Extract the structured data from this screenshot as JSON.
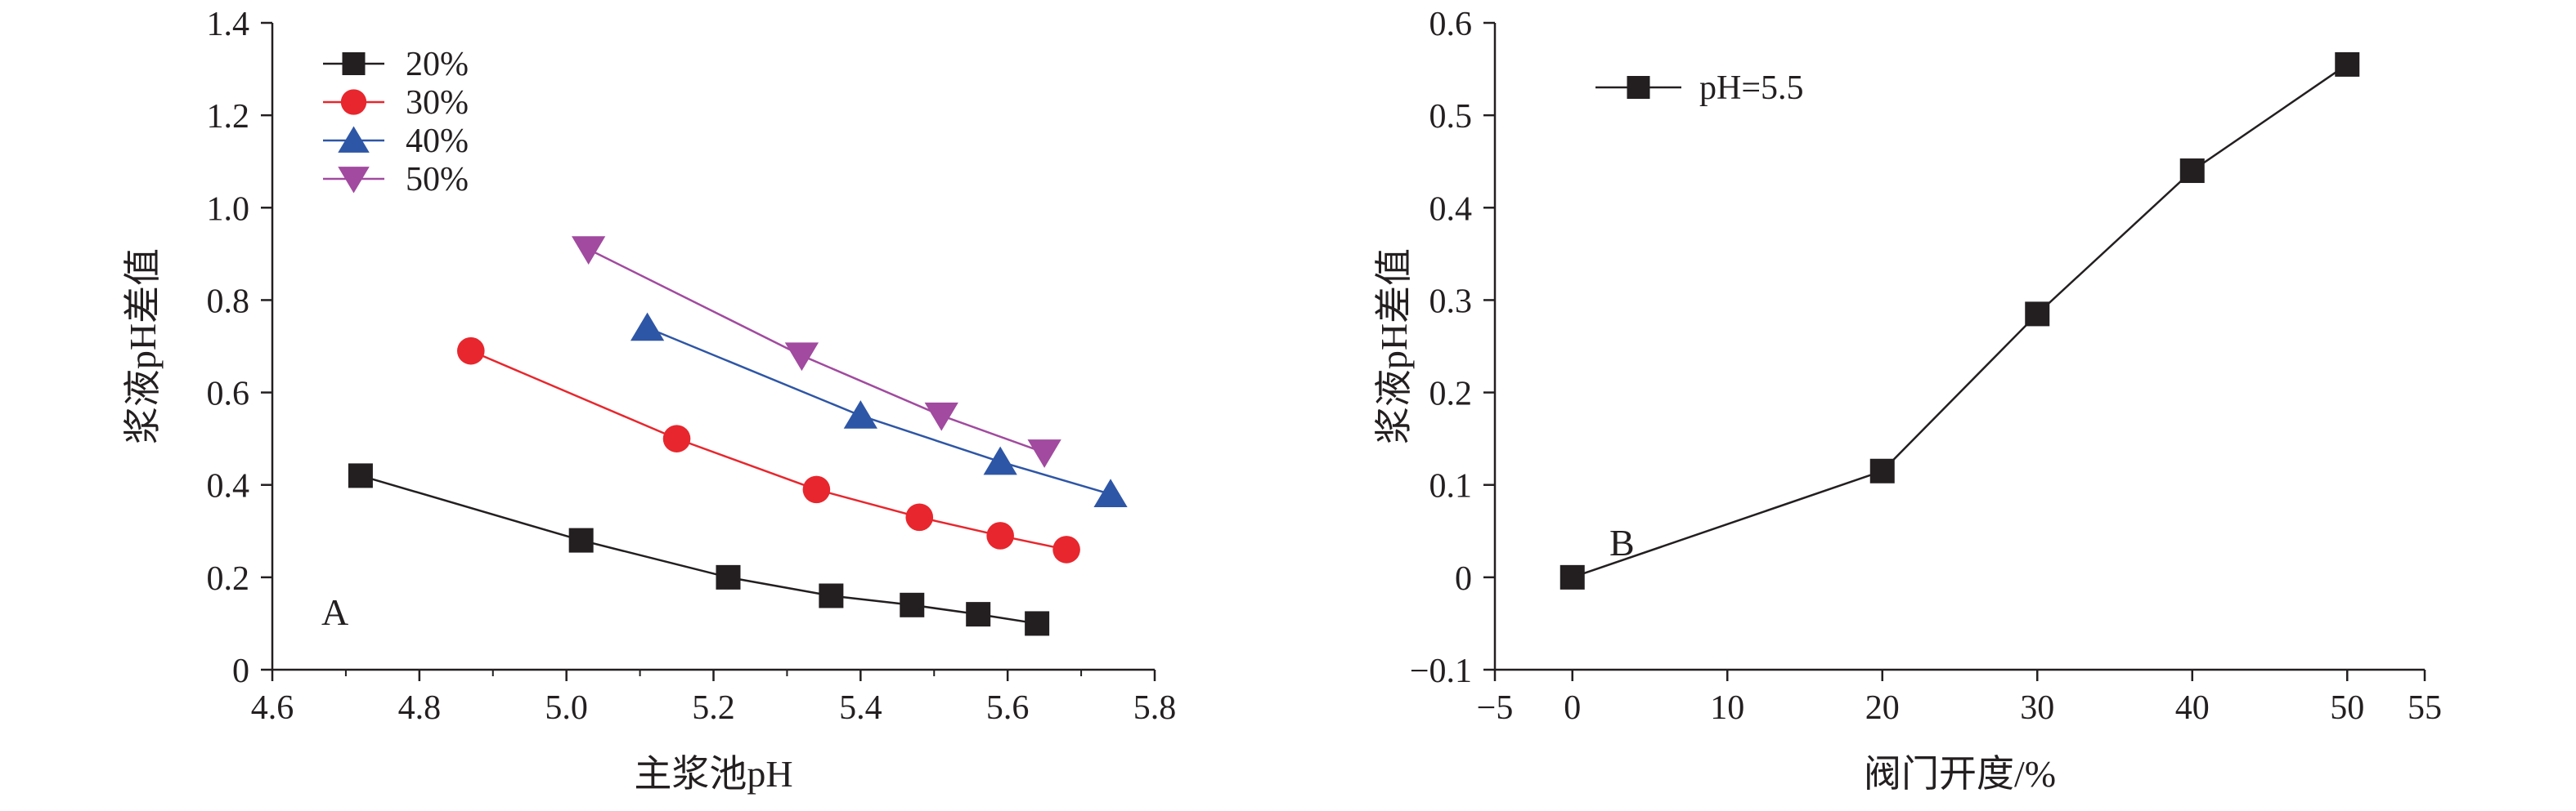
{
  "chart_data": [
    {
      "type": "line",
      "panel_label": "A",
      "title": "",
      "xlabel": "主浆池pH",
      "ylabel": "浆液pH差值",
      "xlim": [
        4.6,
        5.8
      ],
      "ylim": [
        0,
        1.4
      ],
      "xticks": [
        4.6,
        4.8,
        5.0,
        5.2,
        5.4,
        5.6,
        5.8
      ],
      "xtick_labels": [
        "4.6",
        "4.8",
        "5.0",
        "5.2",
        "5.4",
        "5.6",
        "5.8"
      ],
      "yticks": [
        0,
        0.2,
        0.4,
        0.6,
        0.8,
        1.0,
        1.2,
        1.4
      ],
      "ytick_labels": [
        "0",
        "0.2",
        "0.4",
        "0.6",
        "0.8",
        "1.0",
        "1.2",
        "1.4"
      ],
      "grid": false,
      "legend_position": "top-left",
      "series": [
        {
          "name": "20%",
          "marker": "square",
          "color": "#231f20",
          "x": [
            4.72,
            5.02,
            5.22,
            5.36,
            5.47,
            5.56,
            5.64
          ],
          "y": [
            0.42,
            0.28,
            0.2,
            0.16,
            0.14,
            0.12,
            0.1
          ]
        },
        {
          "name": "30%",
          "marker": "circle",
          "color": "#e8262d",
          "x": [
            4.87,
            5.15,
            5.34,
            5.48,
            5.59,
            5.68
          ],
          "y": [
            0.69,
            0.5,
            0.39,
            0.33,
            0.29,
            0.26
          ]
        },
        {
          "name": "40%",
          "marker": "triangle-up",
          "color": "#2e56a6",
          "x": [
            5.11,
            5.4,
            5.59,
            5.74
          ],
          "y": [
            0.74,
            0.55,
            0.45,
            0.38
          ]
        },
        {
          "name": "50%",
          "marker": "triangle-down",
          "color": "#a14a9f",
          "x": [
            5.03,
            5.32,
            5.51,
            5.65
          ],
          "y": [
            0.91,
            0.68,
            0.55,
            0.47
          ]
        }
      ]
    },
    {
      "type": "line",
      "panel_label": "B",
      "title": "",
      "xlabel": "阀门开度/%",
      "ylabel": "浆液pH差值",
      "xlim": [
        -5,
        55
      ],
      "ylim": [
        -0.1,
        0.6
      ],
      "xticks": [
        -5,
        0,
        10,
        20,
        30,
        40,
        50,
        55
      ],
      "xtick_labels": [
        "−5",
        "0",
        "10",
        "20",
        "30",
        "40",
        "50",
        "55"
      ],
      "yticks": [
        -0.1,
        0,
        0.1,
        0.2,
        0.3,
        0.4,
        0.5,
        0.6
      ],
      "ytick_labels": [
        "−0.1",
        "0",
        "0.1",
        "0.2",
        "0.3",
        "0.4",
        "0.5",
        "0.6"
      ],
      "grid": false,
      "legend_position": "top-left",
      "series": [
        {
          "name": "pH=5.5",
          "marker": "square",
          "color": "#231f20",
          "x": [
            0,
            20,
            30,
            40,
            50
          ],
          "y": [
            0,
            0.115,
            0.285,
            0.44,
            0.555
          ]
        }
      ]
    }
  ]
}
